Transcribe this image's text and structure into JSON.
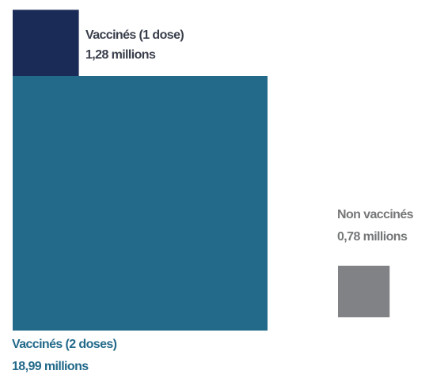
{
  "chart_data": {
    "type": "proportional-area",
    "unit": "millions",
    "series": [
      {
        "name": "Vaccinés (1 dose)",
        "value": 1.28,
        "value_label": "1,28 millions",
        "color": "#1b2b57",
        "text_color": "#3a3f4c"
      },
      {
        "name": "Vaccinés (2 doses)",
        "value": 18.99,
        "value_label": "18,99 millions",
        "color": "#236a8a",
        "text_color": "#236a8a"
      },
      {
        "name": "Non vaccinés",
        "value": 0.78,
        "value_label": "0,78 millions",
        "color": "#808285",
        "text_color": "#757779"
      }
    ]
  }
}
